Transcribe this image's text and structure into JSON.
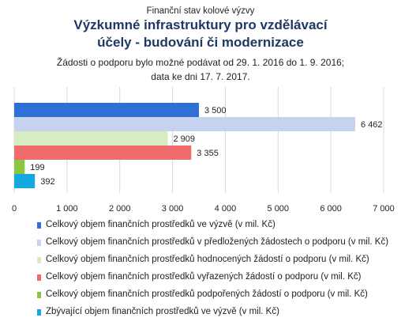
{
  "header": {
    "supertitle": "Finanční stav kolové výzvy",
    "title_line1": "Výzkumné infrastruktury pro vzdělávací",
    "title_line2": "účely - budování či modernizace",
    "subtitle_line1": "Žádosti o podporu bylo možné  podávat od 29. 1. 2016 do 1. 9. 2016;",
    "subtitle_line2": "data ke dni 17. 7. 2017."
  },
  "chart_data": {
    "type": "bar",
    "orientation": "horizontal",
    "grid": true,
    "xlim": [
      0,
      7000
    ],
    "x_ticks": [
      "0",
      "1 000",
      "2 000",
      "3 000",
      "4 000",
      "5 000",
      "6 000",
      "7 000"
    ],
    "x_tick_values": [
      0,
      1000,
      2000,
      3000,
      4000,
      5000,
      6000,
      7000
    ],
    "legend_position": "bottom",
    "series": [
      {
        "name": "Celkový objem finančních prostředků ve výzvě (v mil. Kč)",
        "value": 3500,
        "label": "3 500",
        "color": "#2f6fd6"
      },
      {
        "name": "Celkový objem finančních prostředků v předložených žádostech o podporu (v mil. Kč)",
        "value": 6462,
        "label": "6 462",
        "color": "#c6d3ee"
      },
      {
        "name": "Celkový objem finančních prostředků hodnocených žádostí o podporu (v mil. Kč)",
        "value": 2909,
        "label": "2 909",
        "color": "#d7ecc3"
      },
      {
        "name": "Celkový objem finančních prostředků vyřazených žádostí o podporu (v mil. Kč)",
        "value": 3355,
        "label": "3 355",
        "color": "#f06b6b"
      },
      {
        "name": "Celkový objem finančních prostředků podpořených žádostí o podporu (v mil. Kč)",
        "value": 199,
        "label": "199",
        "color": "#8cc63f"
      },
      {
        "name": "Zbývající objem finančních prostředků ve výzvě (v mil. Kč)",
        "value": 392,
        "label": "392",
        "color": "#14a8e0"
      }
    ]
  }
}
